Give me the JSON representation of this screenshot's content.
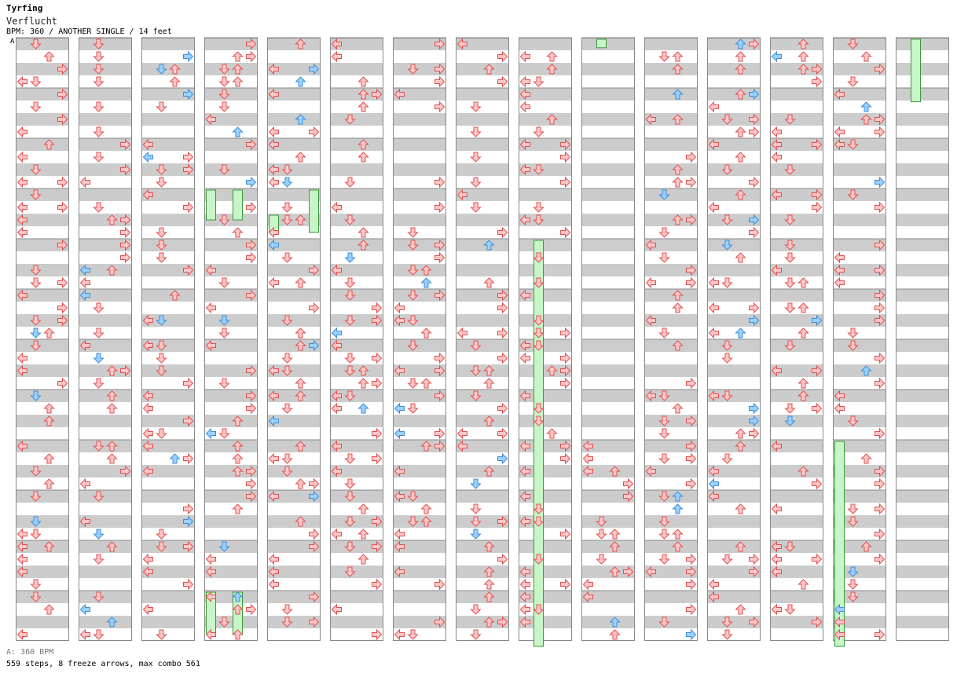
{
  "header": {
    "title": "Tyrfing",
    "song": "Verflucht",
    "info": "BPM: 360 / ANOTHER SINGLE / 14 feet",
    "bpm_marker": "A"
  },
  "footer": {
    "bpm_line": "A: 360 BPM",
    "stats": "559 steps, 8 freeze arrows, max combo 561"
  },
  "colors": {
    "note_red": "#ffc8c8",
    "note_red_stroke": "#e05050",
    "note_blue": "#9cd0ff",
    "note_blue_stroke": "#3e8ed8",
    "freeze_fill": "#c8f5c8",
    "freeze_stroke": "#3a9a3a",
    "stripe": "#cccccc"
  },
  "chart_data": {
    "type": "dance-chart",
    "columns": 15,
    "measures_per_column": 12,
    "lanes": [
      "left",
      "down",
      "up",
      "right"
    ],
    "freezes": [
      {
        "col": 3,
        "lane": 0,
        "start_beat": 12,
        "end_beat": 14
      },
      {
        "col": 3,
        "lane": 2,
        "start_beat": 12,
        "end_beat": 14
      },
      {
        "col": 3,
        "lane": 0,
        "start_beat": 44,
        "end_beat": 47
      },
      {
        "col": 3,
        "lane": 2,
        "start_beat": 44,
        "end_beat": 47
      },
      {
        "col": 4,
        "lane": 0,
        "start_beat": 14,
        "end_beat": 15
      },
      {
        "col": 4,
        "lane": 3,
        "start_beat": 12,
        "end_beat": 15
      },
      {
        "col": 8,
        "lane": 1,
        "start_beat": 16,
        "end_beat": 48
      },
      {
        "col": 9,
        "lane": 1,
        "start_beat": 0,
        "end_beat": 0.3
      },
      {
        "col": 13,
        "lane": 0,
        "start_beat": 32,
        "end_beat": 48
      },
      {
        "col": 14,
        "lane": 1,
        "start_beat": 0,
        "end_beat": 4.6
      }
    ]
  }
}
